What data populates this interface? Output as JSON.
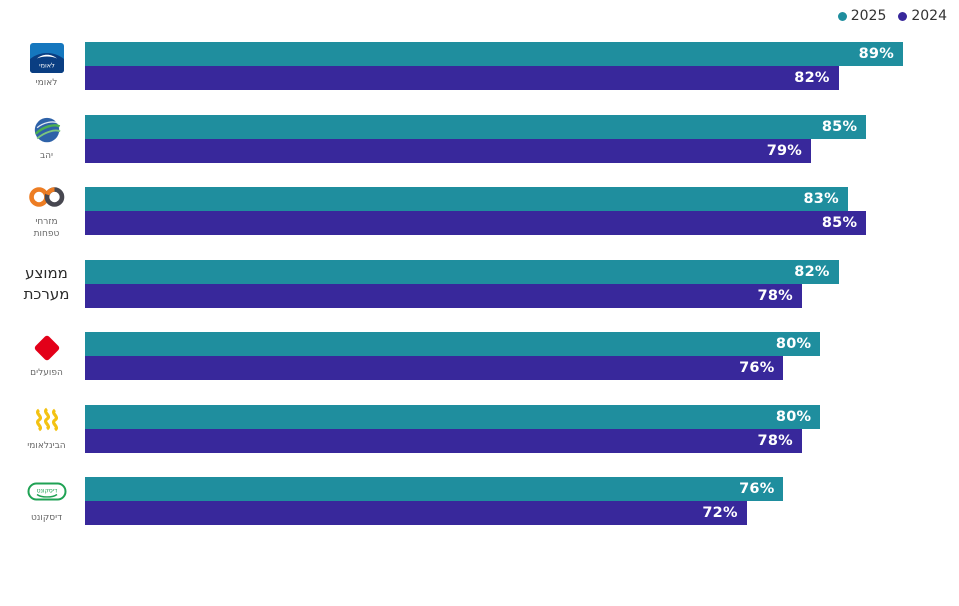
{
  "legend": [
    {
      "label": "2025",
      "color": "#1F8E9E"
    },
    {
      "label": "2024",
      "color": "#38289B"
    }
  ],
  "chart_data": {
    "type": "bar",
    "orientation": "horizontal",
    "title": "",
    "xlabel": "",
    "ylabel": "",
    "xlim": [
      0,
      95.1
    ],
    "grid": false,
    "legend_position": "top-right",
    "value_suffix": "%",
    "series_names": [
      "2025",
      "2024"
    ],
    "colors": {
      "2025": "#1F8E9E",
      "2024": "#38289B"
    },
    "categories": [
      "לאומי",
      "יהב",
      "מזרחי טפחות",
      "ממוצע מערכת",
      "הפועלים",
      "הבינלאומי",
      "דיסקונט"
    ],
    "rows": [
      {
        "label": "לאומי",
        "logo": "leumi-logo",
        "emphasis": false,
        "values": {
          "2025": 89,
          "2024": 82
        }
      },
      {
        "label": "יהב",
        "logo": "yahav-globe-logo",
        "emphasis": false,
        "values": {
          "2025": 85,
          "2024": 79
        }
      },
      {
        "label": "מזרחי\nטפחות",
        "logo": "mizrahi-infinity-logo",
        "emphasis": false,
        "values": {
          "2025": 83,
          "2024": 85
        }
      },
      {
        "label": "ממוצע\nמערכת",
        "logo": null,
        "emphasis": true,
        "values": {
          "2025": 82,
          "2024": 78
        }
      },
      {
        "label": "הפועלים",
        "logo": "hapoalim-diamond-logo",
        "emphasis": false,
        "values": {
          "2025": 80,
          "2024": 76
        }
      },
      {
        "label": "הבינלאומי",
        "logo": "fibi-zigzag-logo",
        "emphasis": false,
        "values": {
          "2025": 80,
          "2024": 78
        }
      },
      {
        "label": "דיסקונט",
        "logo": "discount-logo",
        "emphasis": false,
        "values": {
          "2025": 76,
          "2024": 72
        }
      }
    ]
  }
}
